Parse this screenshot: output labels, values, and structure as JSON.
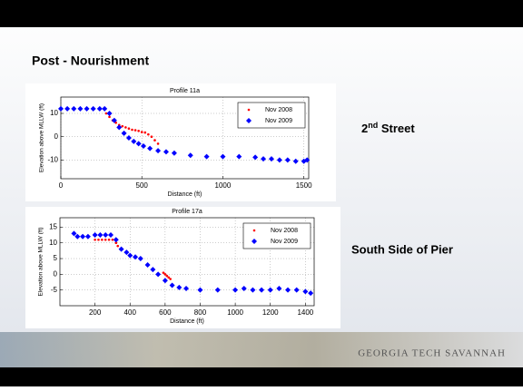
{
  "slide_title": "Post - Nourishment",
  "street_label": [
    "2",
    "nd",
    " Street"
  ],
  "pier_label": "South Side of Pier",
  "footer": "Georgia Tech Savannah",
  "chart_data": [
    {
      "type": "scatter",
      "title": "Profile 11a",
      "x_label": "Distance (ft)",
      "y_label": "Elevation above MLLW (ft)",
      "xlim": [
        0,
        1530
      ],
      "ylim": [
        -18,
        17
      ],
      "xticks": [
        0,
        500,
        1000,
        1500
      ],
      "yticks": [
        -10,
        0,
        10
      ],
      "grid": true,
      "legend": "upper right",
      "series": [
        {
          "name": "Nov 2008",
          "color": "#ff0000",
          "marker": "dot",
          "x": [
            280,
            300,
            320,
            340,
            360,
            380,
            400,
            420,
            440,
            460,
            480,
            500,
            520,
            540,
            560,
            580,
            600
          ],
          "values": [
            10,
            8.5,
            7,
            6,
            5,
            4.5,
            4,
            3.5,
            3,
            2.8,
            2.5,
            2,
            1.8,
            1,
            0,
            -1.5,
            -3
          ]
        },
        {
          "name": "Nov 2009",
          "color": "#0000ff",
          "marker": "diamond",
          "x": [
            0,
            40,
            80,
            120,
            160,
            200,
            240,
            270,
            300,
            330,
            360,
            390,
            420,
            450,
            480,
            510,
            550,
            600,
            650,
            700,
            800,
            900,
            1000,
            1100,
            1200,
            1250,
            1300,
            1350,
            1400,
            1450,
            1500,
            1520
          ],
          "values": [
            12,
            12,
            12,
            12,
            12,
            12,
            12,
            12,
            10,
            7,
            4,
            1.5,
            -0.5,
            -2,
            -3,
            -4,
            -5,
            -6,
            -6.5,
            -7,
            -8,
            -8.5,
            -8.5,
            -8.5,
            -8.8,
            -9.5,
            -9.5,
            -10,
            -10,
            -10.5,
            -10.5,
            -10
          ]
        }
      ]
    },
    {
      "type": "scatter",
      "title": "Profile 17a",
      "x_label": "Distance (ft)",
      "y_label": "Elevation above MLLW (ft)",
      "xlim": [
        0,
        1450
      ],
      "ylim": [
        -10,
        18
      ],
      "xticks": [
        200,
        400,
        600,
        800,
        1000,
        1200,
        1400
      ],
      "yticks": [
        -5,
        0,
        5,
        10,
        15
      ],
      "grid": true,
      "legend": "upper right",
      "series": [
        {
          "name": "Nov 2008",
          "color": "#ff0000",
          "marker": "dot",
          "x": [
            200,
            220,
            240,
            260,
            280,
            300,
            320,
            330,
            590,
            600,
            610,
            620,
            630
          ],
          "values": [
            11,
            11,
            11,
            11,
            11,
            11,
            10,
            9,
            0.5,
            0,
            -0.5,
            -1,
            -1.5
          ]
        },
        {
          "name": "Nov 2009",
          "color": "#0000ff",
          "marker": "diamond",
          "x": [
            80,
            100,
            130,
            160,
            200,
            230,
            260,
            290,
            320,
            350,
            380,
            400,
            430,
            460,
            500,
            530,
            560,
            600,
            640,
            680,
            720,
            800,
            900,
            1000,
            1050,
            1100,
            1150,
            1200,
            1250,
            1300,
            1350,
            1400,
            1430
          ],
          "values": [
            13,
            12,
            12,
            12,
            12.5,
            12.5,
            12.5,
            12.5,
            11,
            8,
            7,
            6,
            5.5,
            5,
            3,
            1.5,
            0,
            -2,
            -3.5,
            -4.2,
            -4.5,
            -5,
            -5,
            -5,
            -4.5,
            -5,
            -5,
            -5,
            -4.5,
            -5,
            -5,
            -5.5,
            -6
          ]
        }
      ]
    }
  ]
}
